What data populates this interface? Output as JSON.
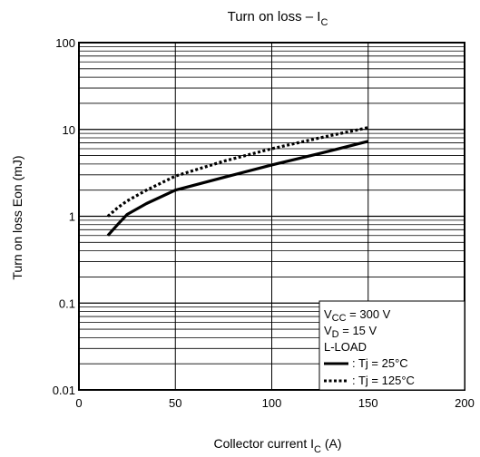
{
  "title": {
    "main": "Turn on loss – I",
    "sub": "C"
  },
  "xlabel": {
    "main": "Collector current   I",
    "sub": "C",
    "unit": "(A)"
  },
  "ylabel": {
    "main": "Turn on loss   Eon",
    "unit": "(mJ)"
  },
  "conditions": {
    "vcc": {
      "sym": "V",
      "sub": "CC",
      "val": " = 300 V"
    },
    "vd": {
      "sym": "V",
      "sub": "D",
      "val": " = 15 V"
    },
    "load": "L-LOAD"
  },
  "chart_data": {
    "type": "line",
    "xlim": [
      0,
      200
    ],
    "ylim": [
      0.01,
      100
    ],
    "yscale": "log",
    "grid": true,
    "xticks": [
      "0",
      "50",
      "100",
      "150",
      "200"
    ],
    "yticks": [
      "0.01",
      "0.1",
      "1",
      "10",
      "100"
    ],
    "legend_position": "bottom-right",
    "series": [
      {
        "name": ": Tj = 25°C",
        "style": "solid",
        "color": "#000000",
        "x": [
          15,
          20,
          25,
          35,
          50,
          75,
          100,
          125,
          150
        ],
        "y": [
          0.6,
          0.8,
          1.05,
          1.4,
          2.0,
          2.8,
          3.9,
          5.3,
          7.3
        ]
      },
      {
        "name": ": Tj = 125°C",
        "style": "dotted",
        "color": "#000000",
        "x": [
          15,
          20,
          25,
          35,
          50,
          75,
          100,
          125,
          150
        ],
        "y": [
          1.0,
          1.25,
          1.5,
          2.0,
          2.9,
          4.3,
          6.0,
          8.0,
          10.5
        ]
      }
    ]
  }
}
